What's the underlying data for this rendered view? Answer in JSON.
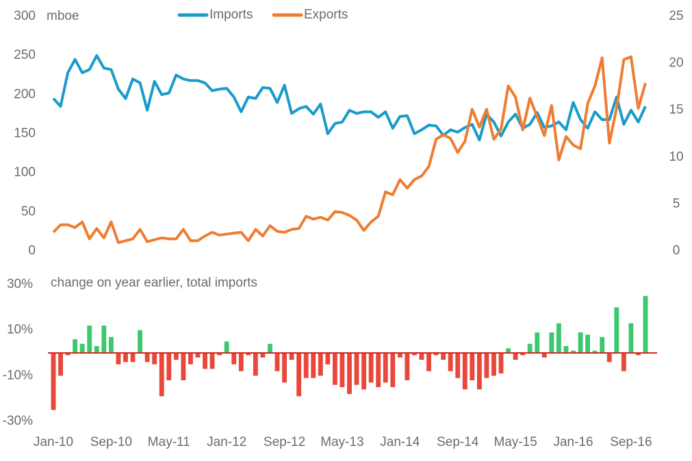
{
  "chart_data": [
    {
      "type": "line",
      "y_label": "mboe",
      "ylim": [
        0,
        300
      ],
      "yticks": [
        0,
        50,
        100,
        150,
        200,
        250,
        300
      ],
      "y2lim": [
        0,
        25
      ],
      "y2ticks": [
        0,
        5,
        10,
        15,
        20,
        25
      ],
      "legend": "top",
      "series": [
        {
          "name": "Imports",
          "color": "#1a9bc9",
          "values": [
            195,
            185,
            228,
            245,
            228,
            232,
            250,
            234,
            232,
            207,
            195,
            220,
            215,
            180,
            217,
            200,
            202,
            225,
            220,
            218,
            218,
            215,
            205,
            207,
            208,
            197,
            178,
            197,
            195,
            209,
            208,
            190,
            212,
            176,
            182,
            185,
            175,
            188,
            150,
            163,
            165,
            180,
            176,
            178,
            178,
            171,
            178,
            157,
            172,
            173,
            150,
            155,
            161,
            160,
            148,
            155,
            152,
            158,
            162,
            142,
            175,
            165,
            147,
            165,
            175,
            157,
            162,
            177,
            158,
            160,
            165,
            155,
            190,
            168,
            157,
            178,
            168,
            168,
            197,
            162,
            180,
            165,
            185
          ]
        },
        {
          "name": "Exports",
          "color": "#ee7d31",
          "axis": "y2",
          "values": [
            2,
            2.8,
            2.8,
            2.5,
            3.1,
            1.3,
            2.4,
            1.4,
            3.1,
            0.9,
            1.1,
            1.3,
            2.3,
            1.0,
            1.2,
            1.4,
            1.3,
            1.3,
            2.3,
            1.1,
            1.1,
            1.6,
            2.0,
            1.7,
            1.8,
            1.9,
            2.0,
            1.1,
            2.3,
            1.6,
            2.7,
            2.1,
            2.0,
            2.3,
            2.4,
            3.7,
            3.4,
            3.6,
            3.3,
            4.2,
            4.1,
            3.8,
            3.3,
            2.2,
            3.1,
            3.7,
            6.3,
            6.0,
            7.6,
            6.7,
            7.6,
            8.0,
            9.0,
            11.9,
            12.4,
            12.0,
            10.5,
            11.7,
            15.1,
            13.2,
            15.1,
            11.9,
            13.0,
            17.6,
            16.4,
            12.9,
            16.3,
            14.3,
            12.3,
            15.5,
            9.7,
            12.2,
            11.3,
            10.9,
            15.7,
            17.6,
            20.6,
            11.5,
            15.2,
            20.4,
            20.7,
            15.2,
            17.9
          ]
        }
      ]
    },
    {
      "type": "bar",
      "title": "change on year earlier, total imports",
      "categories": [
        "Jan-10",
        null,
        null,
        null,
        null,
        null,
        null,
        null,
        "Sep-10",
        null,
        null,
        null,
        null,
        null,
        null,
        null,
        "May-11",
        null,
        null,
        null,
        null,
        null,
        null,
        null,
        "Jan-12",
        null,
        null,
        null,
        null,
        null,
        null,
        null,
        "Sep-12",
        null,
        null,
        null,
        null,
        null,
        null,
        null,
        "May-13",
        null,
        null,
        null,
        null,
        null,
        null,
        null,
        "Jan-14",
        null,
        null,
        null,
        null,
        null,
        null,
        null,
        "Sep-14",
        null,
        null,
        null,
        null,
        null,
        null,
        null,
        "May-15",
        null,
        null,
        null,
        null,
        null,
        null,
        null,
        "Jan-16",
        null,
        null,
        null,
        null,
        null,
        null,
        null,
        "Sep-16",
        null,
        null
      ],
      "values": [
        -25,
        -10,
        -1,
        6,
        4,
        12,
        3,
        12,
        7,
        -5,
        -4,
        -4,
        10,
        -4,
        -5,
        -19,
        -12,
        -3,
        -12,
        -5,
        -2,
        -7,
        -7,
        -1,
        5,
        -5,
        -8,
        -1,
        -10,
        -2,
        4,
        -8,
        -13,
        -3,
        -19,
        -11,
        -11,
        -10,
        -5,
        -14,
        -15,
        -18,
        -14,
        -16,
        -13,
        -15,
        -13,
        -15,
        -2,
        -12,
        -1,
        -3,
        -8,
        -1,
        -3,
        -8,
        -11,
        -16,
        -12,
        -16,
        -11,
        -10,
        -9,
        2,
        -3,
        -1,
        4,
        9,
        -2,
        9,
        13,
        3,
        1,
        9,
        8,
        1,
        7,
        -4,
        20,
        -8,
        13,
        -1,
        25
      ],
      "ylim": [
        -30,
        30
      ],
      "yticks": [
        {
          "value": -30,
          "label": "-30%"
        },
        {
          "value": -10,
          "label": "-10%"
        },
        {
          "value": 10,
          "label": "10%"
        },
        {
          "value": 30,
          "label": "30%"
        }
      ],
      "positive_color": "#3cc86e",
      "negative_color": "#e8473a",
      "zero_line_color": "#d0281c"
    }
  ]
}
